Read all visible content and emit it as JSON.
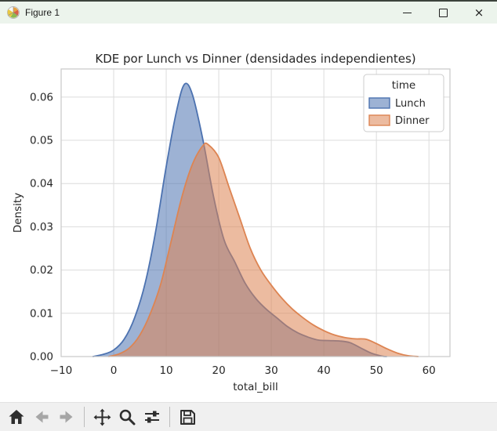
{
  "window": {
    "title": "Figure 1",
    "controls": {
      "minimize": "minimize",
      "maximize": "maximize",
      "close": "×"
    }
  },
  "toolbar": {
    "icons": [
      "home",
      "back",
      "forward",
      "pan",
      "zoom-to-rect",
      "configure-subplots",
      "save"
    ]
  },
  "chart_data": {
    "type": "area",
    "subtype": "kde",
    "title": "KDE por Lunch vs Dinner (densidades independientes)",
    "xlabel": "total_bill",
    "ylabel": "Density",
    "xlim": [
      -10,
      64
    ],
    "ylim": [
      0,
      0.0665
    ],
    "grid": true,
    "background": "#ffffff",
    "grid_color": "#dcdcdc",
    "frame_color": "#c9c9c9",
    "text_color": "#262626",
    "xtick_values": [
      -10,
      0,
      10,
      20,
      30,
      40,
      50,
      60
    ],
    "xtick_labels": [
      "−10",
      "0",
      "10",
      "20",
      "30",
      "40",
      "50",
      "60"
    ],
    "ytick_values": [
      0.0,
      0.01,
      0.02,
      0.03,
      0.04,
      0.05,
      0.06
    ],
    "ytick_labels": [
      "0.00",
      "0.01",
      "0.02",
      "0.03",
      "0.04",
      "0.05",
      "0.06"
    ],
    "legend": {
      "title": "time",
      "position": "upper right",
      "entries": [
        "Lunch",
        "Dinner"
      ]
    },
    "series": [
      {
        "name": "Lunch",
        "line_color": "#4c72b0",
        "fill_color": "rgba(76,114,176,0.55)",
        "points": [
          [
            -4,
            0
          ],
          [
            -2,
            0.0005
          ],
          [
            0,
            0.0015
          ],
          [
            2,
            0.004
          ],
          [
            4,
            0.009
          ],
          [
            6,
            0.017
          ],
          [
            8,
            0.029
          ],
          [
            10,
            0.044
          ],
          [
            12,
            0.057
          ],
          [
            13.5,
            0.063
          ],
          [
            15,
            0.0605
          ],
          [
            17,
            0.05
          ],
          [
            19,
            0.037
          ],
          [
            21,
            0.027
          ],
          [
            23,
            0.022
          ],
          [
            25,
            0.017
          ],
          [
            27,
            0.0135
          ],
          [
            29,
            0.011
          ],
          [
            31,
            0.009
          ],
          [
            33,
            0.007
          ],
          [
            35,
            0.0055
          ],
          [
            37,
            0.0045
          ],
          [
            39,
            0.0038
          ],
          [
            41,
            0.0037
          ],
          [
            43,
            0.0036
          ],
          [
            45,
            0.0032
          ],
          [
            47,
            0.002
          ],
          [
            49,
            0.0008
          ],
          [
            51,
            0.0001
          ],
          [
            52,
            0
          ]
        ]
      },
      {
        "name": "Dinner",
        "line_color": "#dd8452",
        "fill_color": "rgba(221,132,82,0.55)",
        "points": [
          [
            -1,
            0
          ],
          [
            1,
            0.0006
          ],
          [
            3,
            0.002
          ],
          [
            5,
            0.005
          ],
          [
            7,
            0.01
          ],
          [
            9,
            0.017
          ],
          [
            11,
            0.027
          ],
          [
            13,
            0.037
          ],
          [
            15,
            0.0445
          ],
          [
            17,
            0.0488
          ],
          [
            18,
            0.049
          ],
          [
            20,
            0.046
          ],
          [
            22,
            0.039
          ],
          [
            24,
            0.032
          ],
          [
            26,
            0.025
          ],
          [
            28,
            0.02
          ],
          [
            30,
            0.0165
          ],
          [
            32,
            0.0135
          ],
          [
            34,
            0.011
          ],
          [
            36,
            0.009
          ],
          [
            38,
            0.0073
          ],
          [
            40,
            0.006
          ],
          [
            42,
            0.005
          ],
          [
            44,
            0.0044
          ],
          [
            46,
            0.0041
          ],
          [
            48,
            0.004
          ],
          [
            50,
            0.003
          ],
          [
            52,
            0.0018
          ],
          [
            54,
            0.0008
          ],
          [
            56,
            0.0002
          ],
          [
            58,
            0
          ]
        ]
      }
    ]
  }
}
